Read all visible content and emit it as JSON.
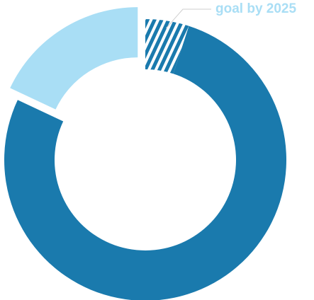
{
  "chart_data": {
    "type": "donut",
    "labels": [
      "goal by 2025",
      null,
      null
    ],
    "values": [
      5,
      77,
      18
    ],
    "colors": [
      "#1a7aad",
      "#1a7aad",
      "#a9def5"
    ],
    "hatch": [
      true,
      false,
      false
    ],
    "explode": [
      false,
      false,
      true
    ],
    "label_color": "#a9def5"
  }
}
